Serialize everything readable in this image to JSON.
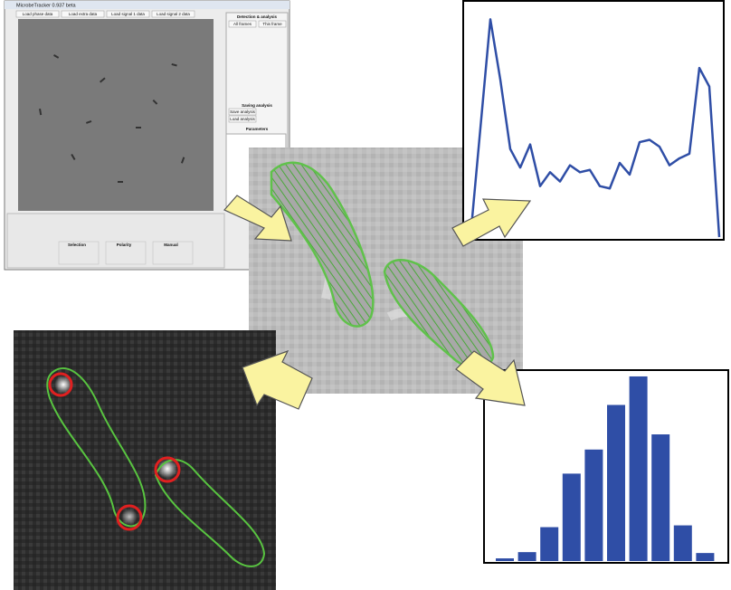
{
  "screenshot": {
    "title": "MicrobeTracker 0.937 beta",
    "toolbar": [
      "Load phase data",
      "Load extra data",
      "Load signal 1 data",
      "Load signal 2 data"
    ],
    "panel_headers": [
      "Detection & analysis",
      "Saving analysis",
      "Parameters"
    ],
    "bottom_headers": [
      "Selection",
      "Polarity",
      "Manual"
    ],
    "buttons": [
      "All frames",
      "This frame",
      "Save analysis",
      "Load analysis"
    ]
  },
  "chart_data": [
    {
      "type": "line",
      "color": "#2f4ea6",
      "ylim": [
        0,
        100
      ],
      "values": [
        0,
        47,
        94,
        68,
        38,
        30,
        40,
        22,
        28,
        24,
        31,
        28,
        29,
        22,
        21,
        32,
        27,
        41,
        42,
        39,
        31,
        34,
        36,
        73,
        65,
        0
      ]
    },
    {
      "type": "bar",
      "color": "#2f4ea6",
      "ylim": [
        0,
        210
      ],
      "values": [
        3,
        10,
        38,
        98,
        125,
        175,
        207,
        142,
        40,
        9
      ]
    }
  ]
}
